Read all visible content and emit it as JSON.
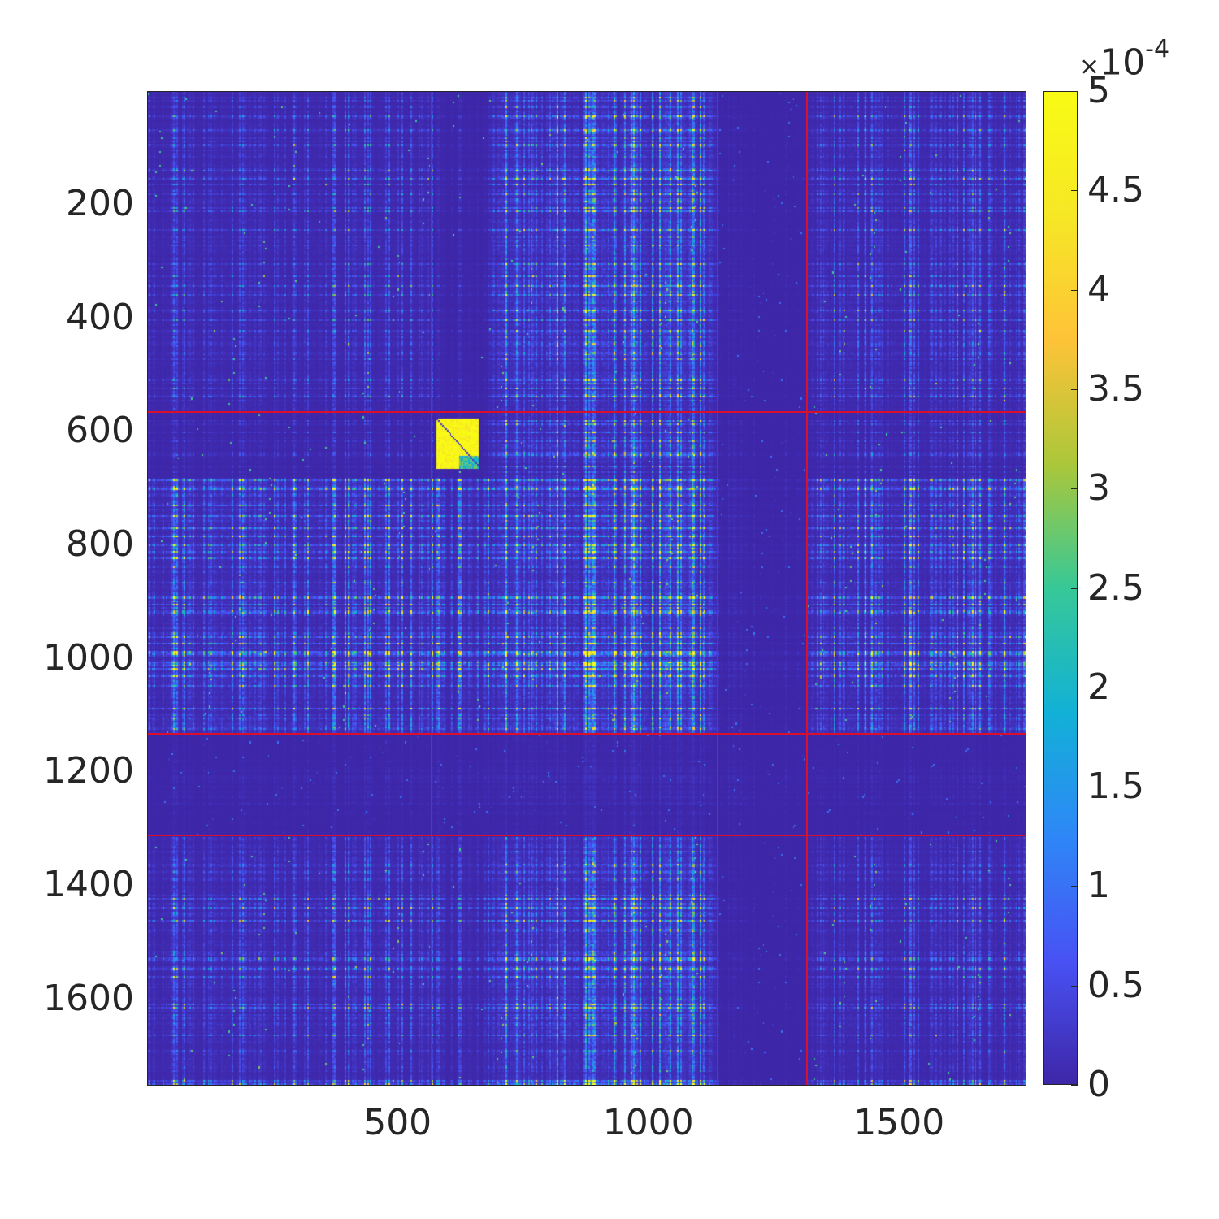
{
  "chart_data": {
    "type": "heatmap",
    "title": "",
    "xlabel": "",
    "ylabel": "",
    "size": 1752,
    "xlim": [
      0.5,
      1752.5
    ],
    "ylim": [
      0.5,
      1752.5
    ],
    "x_ticks": [
      500,
      1000,
      1500
    ],
    "x_tick_labels": [
      "500",
      "1000",
      "1500"
    ],
    "y_ticks": [
      200,
      400,
      600,
      800,
      1000,
      1200,
      1400,
      1600
    ],
    "y_tick_labels": [
      "200",
      "400",
      "600",
      "800",
      "1000",
      "1200",
      "1400",
      "1600"
    ],
    "group_boundaries_x": [
      568,
      1138,
      1317
    ],
    "group_boundaries_y": [
      566,
      1134,
      1313
    ],
    "boundary_color": "#d8102c",
    "colormap": "parula",
    "clim": [
      0,
      0.0005
    ],
    "colorbar": {
      "ticks": [
        0,
        0.5,
        1,
        1.5,
        2,
        2.5,
        3,
        3.5,
        4,
        4.5,
        5
      ],
      "tick_labels": [
        "0",
        "0.5",
        "1",
        "1.5",
        "2",
        "2.5",
        "3",
        "3.5",
        "4",
        "4.5",
        "5"
      ],
      "multiplier_base": "10",
      "multiplier_exponent": "-4",
      "multiplier_symbol": "×",
      "location": "right"
    },
    "notable_features": {
      "high_value_block_rows": [
        575,
        665
      ],
      "high_value_block_cols": [
        575,
        660
      ]
    }
  }
}
